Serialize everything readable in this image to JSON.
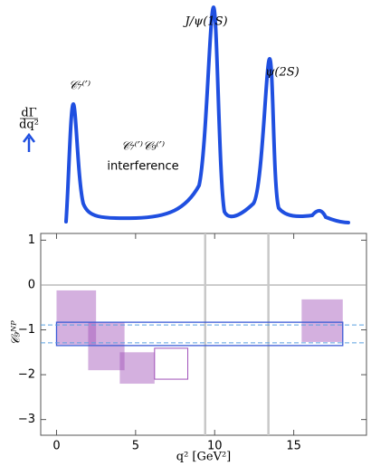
{
  "chart_data": {
    "type": "range",
    "curve_labels": {
      "c7": "𝒞₇⁽′⁾",
      "jpsi": "J/ψ(1S)",
      "psi2s": "ψ(2S)",
      "c7c9": "𝒞₇⁽′⁾𝒞₉⁽′⁾",
      "interference": "interference",
      "rate_num": "dΓ",
      "rate_den": "dq²"
    },
    "ylabel": "𝒞₉ᴺᴾ",
    "xlabel": "q² [GeV²]",
    "xlim": [
      -1,
      19.6
    ],
    "ylim": [
      -3.35,
      1.15
    ],
    "xticks": [
      0,
      5,
      10,
      15
    ],
    "yticks": [
      1,
      0,
      {
        "value": -1,
        "label": "−1"
      },
      {
        "value": -2,
        "label": "−2"
      },
      {
        "value": -3,
        "label": "−3"
      }
    ],
    "bins": [
      {
        "x": [
          0,
          2.5
        ],
        "y": [
          -1.33,
          -0.12
        ],
        "filled": true
      },
      {
        "x": [
          2,
          4.3
        ],
        "y": [
          -1.9,
          -0.83
        ],
        "filled": true
      },
      {
        "x": [
          4,
          6.2
        ],
        "y": [
          -2.2,
          -1.5
        ],
        "filled": true
      },
      {
        "x": [
          6.2,
          8.3
        ],
        "y": [
          -2.1,
          -1.41
        ],
        "filled": false
      },
      {
        "x": [
          15.5,
          18.1
        ],
        "y": [
          -1.27,
          -0.32
        ],
        "filled": true
      }
    ],
    "bin_color": "#a050b8",
    "band": {
      "x": [
        0,
        18.1
      ],
      "y": [
        -1.35,
        -0.83
      ],
      "color": "#3b5bd6"
    },
    "dashed": [
      -1.29,
      -0.89
    ],
    "dashed_color": "#5aa0e0",
    "vlines": [
      9.4,
      13.4
    ],
    "hline": 0
  }
}
